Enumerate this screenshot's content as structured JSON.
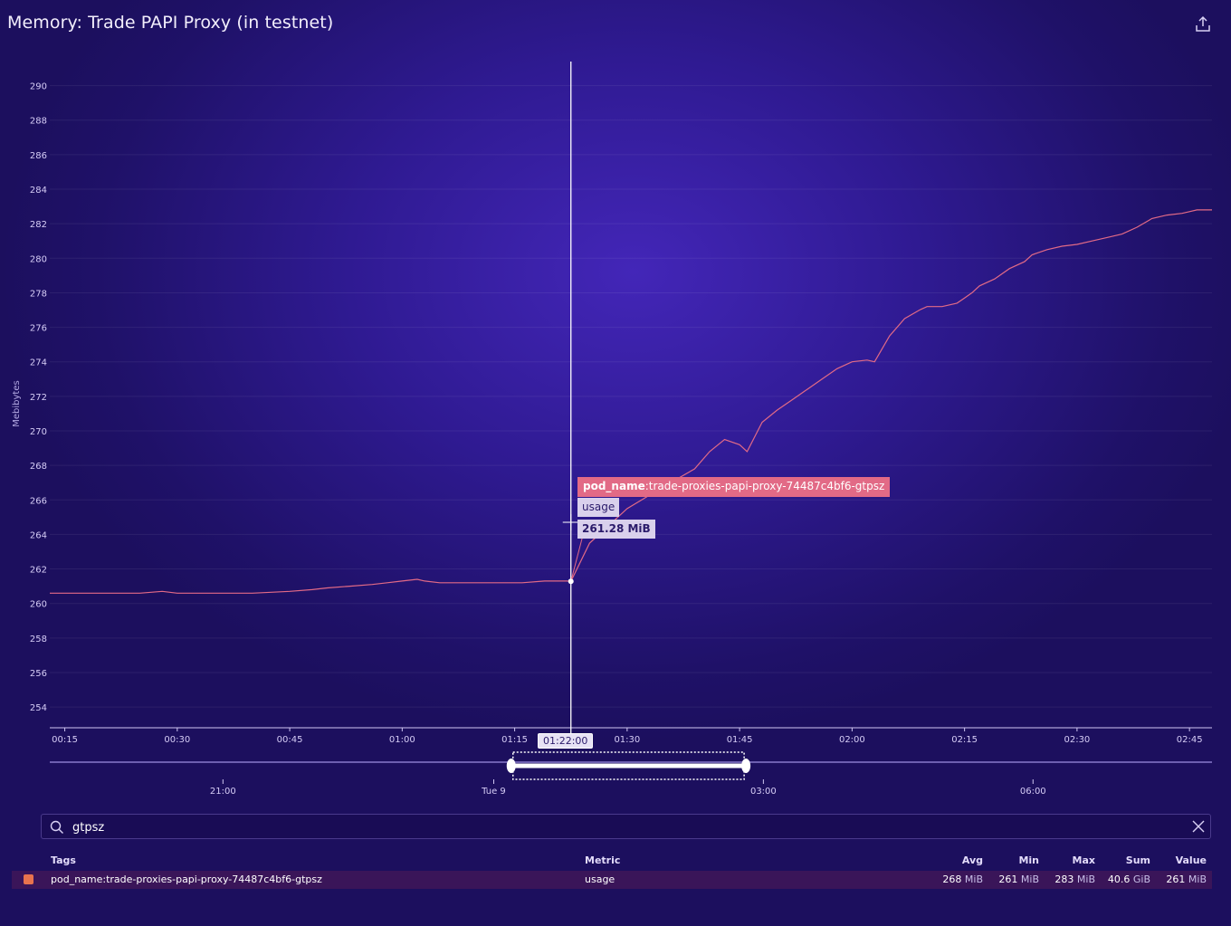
{
  "title": "Memory: Trade PAPI Proxy (in testnet)",
  "icons": {
    "export": "export-icon",
    "search": "search-icon",
    "clear": "close-icon"
  },
  "colors": {
    "series": "#e26a86",
    "swatch": "#e8734e",
    "cursor": "#ffffff",
    "tooltip_tag_bg": "#e26a86"
  },
  "chart_data": {
    "type": "line",
    "ylabel": "Mebibytes",
    "ylim": [
      252.8,
      291.5
    ],
    "yticks": [
      254,
      256,
      258,
      260,
      262,
      264,
      266,
      268,
      270,
      272,
      274,
      276,
      278,
      280,
      282,
      284,
      286,
      288,
      290
    ],
    "xticks": [
      "00:15",
      "00:30",
      "00:45",
      "01:00",
      "01:15",
      "01:30",
      "01:45",
      "02:00",
      "02:15",
      "02:30",
      "02:45"
    ],
    "xrange_minutes": [
      13,
      168
    ],
    "grid": true,
    "series": [
      {
        "name": "pod_name:trade-proxies-papi-proxy-74487c4bf6-gtpsz",
        "x": [
          13,
          15,
          18,
          22,
          25,
          28,
          30,
          33,
          36,
          40,
          45,
          48,
          50,
          53,
          56,
          58,
          60,
          62,
          63,
          65,
          67,
          70,
          73,
          76,
          79,
          82,
          82.5,
          85,
          90,
          95,
          99,
          101,
          103,
          105,
          106,
          108,
          110,
          112,
          114,
          116,
          118,
          120,
          122,
          123,
          125,
          127,
          129,
          130,
          131,
          132,
          134,
          135,
          136,
          137,
          139,
          141,
          143,
          144,
          146,
          148,
          150,
          152,
          154,
          156,
          158,
          160,
          162,
          164,
          165,
          166,
          167,
          168
        ],
        "values": [
          260.6,
          260.6,
          260.6,
          260.6,
          260.6,
          260.7,
          260.6,
          260.6,
          260.6,
          260.6,
          260.7,
          260.8,
          260.9,
          261.0,
          261.1,
          261.2,
          261.3,
          261.4,
          261.3,
          261.2,
          261.2,
          261.2,
          261.2,
          261.2,
          261.3,
          261.3,
          261.28,
          263.5,
          265.5,
          266.8,
          267.8,
          268.8,
          269.5,
          269.2,
          268.8,
          270.5,
          271.2,
          271.8,
          272.4,
          273.0,
          273.6,
          274.0,
          274.1,
          274.0,
          275.5,
          276.5,
          277.0,
          277.2,
          277.2,
          277.2,
          277.4,
          277.7,
          278.0,
          278.4,
          278.8,
          279.4,
          279.8,
          280.2,
          280.5,
          280.7,
          280.8,
          281.0,
          281.2,
          281.4,
          281.8,
          282.3,
          282.5,
          282.6,
          282.7,
          282.8,
          282.8,
          282.8
        ]
      }
    ],
    "cursor": {
      "x": 82.5,
      "time_label": "01:22:00"
    },
    "navigator": {
      "ticks": [
        {
          "label": "21:00",
          "pos": 0.149
        },
        {
          "label": "Tue 9",
          "pos": 0.382
        },
        {
          "label": "03:00",
          "pos": 0.614
        },
        {
          "label": "06:00",
          "pos": 0.846
        }
      ],
      "window": [
        0.397,
        0.599
      ]
    }
  },
  "tooltip": {
    "tag_key": "pod_name",
    "tag_value": ":trade-proxies-papi-proxy-74487c4bf6-gtpsz",
    "metric": "usage",
    "value": "261.28 MiB"
  },
  "search": {
    "value": "gtpsz",
    "placeholder": ""
  },
  "table": {
    "headers": {
      "tags": "Tags",
      "metric": "Metric",
      "avg": "Avg",
      "min": "Min",
      "max": "Max",
      "sum": "Sum",
      "value": "Value"
    },
    "rows": [
      {
        "tags": "pod_name:trade-proxies-papi-proxy-74487c4bf6-gtpsz",
        "metric": "usage",
        "avg": "268",
        "avg_unit": "MiB",
        "min": "261",
        "min_unit": "MiB",
        "max": "283",
        "max_unit": "MiB",
        "sum": "40.6",
        "sum_unit": "GiB",
        "value": "261",
        "value_unit": "MiB"
      }
    ]
  }
}
